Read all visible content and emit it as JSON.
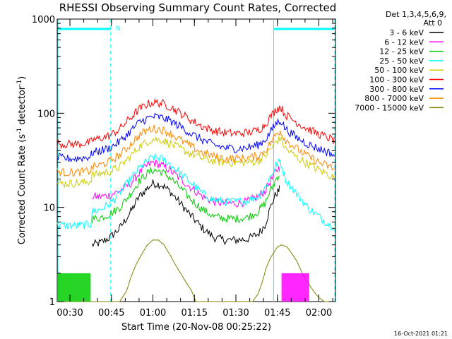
{
  "chart_data": {
    "type": "line",
    "title": "RHESSI Observing Summary Count Rates, Corrected",
    "xlabel": "Start Time (20-Nov-08 00:25:22)",
    "ylabel_prefix": "Corrected Count Rate (s",
    "ylabel_sup1": "-1",
    "ylabel_mid": " detector",
    "ylabel_sup2": "-1",
    "ylabel_suffix": ")",
    "yscale": "log",
    "ylim": [
      1,
      1000
    ],
    "xlim_minutes": [
      25.4,
      126
    ],
    "yticks": [
      {
        "value": 1,
        "label": "1"
      },
      {
        "value": 10,
        "label": "10"
      },
      {
        "value": 100,
        "label": "100"
      },
      {
        "value": 1000,
        "label": "1000"
      }
    ],
    "xticks": [
      {
        "minute": 30,
        "label": "00:30"
      },
      {
        "minute": 45,
        "label": "00:45"
      },
      {
        "minute": 60,
        "label": "01:00"
      },
      {
        "minute": 75,
        "label": "01:15"
      },
      {
        "minute": 90,
        "label": "01:30"
      },
      {
        "minute": 105,
        "label": "01:45"
      },
      {
        "minute": 120,
        "label": "02:00"
      }
    ],
    "legend_header1": "Det 1,3,4,5,6,9,",
    "legend_header2": "Att 0",
    "legend_position": "right",
    "night_intervals_minutes": [
      [
        25.4,
        45.0
      ],
      [
        103.4,
        126
      ]
    ],
    "night_label": "N",
    "saa_style": "dashed cyan vertical lines",
    "series": [
      {
        "name": "3 - 6 keV",
        "color": "#000000",
        "x": [
          25.4,
          37.5,
          38.0,
          41.0,
          44.5,
          48,
          52,
          55,
          58,
          60,
          63,
          66,
          70,
          74,
          78,
          82,
          86,
          90,
          94,
          98,
          100.5,
          102,
          103.5,
          104.5,
          105.5,
          106,
          106.2,
          126
        ],
        "y": [
          null,
          null,
          4.0,
          4.2,
          4.8,
          6,
          9,
          13,
          16,
          18,
          17.5,
          15,
          11,
          8,
          6,
          4.8,
          4.5,
          4.5,
          4.6,
          5.2,
          6.5,
          9,
          12,
          14,
          15,
          16,
          null,
          null
        ]
      },
      {
        "name": "6 - 12 keV",
        "color": "#ff00ff",
        "x": [
          25.4,
          37.5,
          38.0,
          41.0,
          44.5,
          48,
          52,
          55,
          58,
          60,
          63,
          66,
          70,
          74,
          78,
          82,
          86,
          90,
          94,
          98,
          100.5,
          102,
          103.5,
          104.5,
          105.5,
          106,
          106.2,
          126
        ],
        "y": [
          null,
          null,
          13,
          13,
          13.5,
          15,
          18,
          23,
          28,
          30,
          28,
          25,
          20,
          16,
          13,
          11.5,
          11,
          11,
          11.5,
          13,
          15,
          18,
          21,
          24,
          26,
          27,
          null,
          null
        ]
      },
      {
        "name": "12 - 25 keV",
        "color": "#00cc00",
        "x": [
          25.4,
          37.5,
          38.0,
          41.0,
          44.5,
          48,
          52,
          55,
          58,
          60,
          63,
          66,
          70,
          74,
          78,
          82,
          86,
          90,
          94,
          98,
          100.5,
          102,
          103.5,
          104.5,
          105.5,
          106,
          106.2,
          126
        ],
        "y": [
          null,
          null,
          7.5,
          7.8,
          8.5,
          10,
          14,
          19,
          23,
          25,
          24,
          21,
          16,
          12,
          9.5,
          8,
          7.6,
          7.6,
          7.8,
          9,
          11,
          14,
          17,
          20,
          22,
          23,
          null,
          null
        ]
      },
      {
        "name": "25 - 50 keV",
        "color": "#00ffff",
        "x": [
          25.4,
          28,
          32,
          36,
          37.5,
          38.0,
          41.0,
          44.5,
          48,
          52,
          55,
          58,
          60,
          63,
          66,
          70,
          74,
          78,
          82,
          86,
          90,
          94,
          98,
          100.5,
          102,
          103.5,
          104.5,
          105.5,
          106,
          108,
          112,
          116,
          120,
          124,
          126
        ],
        "y": [
          6.5,
          6.4,
          6.4,
          6.5,
          6.6,
          9,
          9.5,
          11,
          14,
          20,
          26,
          31,
          34,
          33,
          29,
          23,
          18,
          14,
          12,
          11.5,
          11.5,
          11.8,
          13,
          16,
          20,
          24,
          28,
          30,
          31,
          20,
          14,
          10,
          8,
          6.5,
          6.2
        ]
      },
      {
        "name": "50 - 100 keV",
        "color": "#cccc00",
        "x": [
          25.4,
          28,
          32,
          36,
          37.5,
          38.0,
          41.0,
          44.5,
          48,
          52,
          55,
          58,
          60,
          63,
          66,
          70,
          74,
          78,
          82,
          86,
          90,
          94,
          98,
          100.5,
          102,
          103.5,
          104.5,
          105.5,
          106,
          108,
          112,
          116,
          120,
          124,
          126
        ],
        "y": [
          18,
          18,
          18,
          18.5,
          19,
          22,
          23,
          24,
          27,
          35,
          44,
          50,
          53,
          52,
          48,
          42,
          37,
          33,
          31,
          30,
          30,
          30,
          31,
          35,
          40,
          45,
          50,
          52,
          54,
          42,
          34,
          29,
          25,
          22,
          20
        ]
      },
      {
        "name": "100 - 300 keV",
        "color": "#ff0000",
        "x": [
          25.4,
          28,
          32,
          36,
          37.5,
          38.0,
          41.0,
          44.5,
          48,
          52,
          55,
          58,
          60,
          63,
          66,
          70,
          74,
          78,
          82,
          86,
          90,
          94,
          98,
          100.5,
          102,
          103.5,
          104.5,
          105.5,
          106,
          108,
          112,
          116,
          120,
          124,
          126
        ],
        "y": [
          48,
          47,
          47,
          48,
          49,
          52,
          54,
          58,
          68,
          90,
          110,
          125,
          130,
          128,
          118,
          100,
          84,
          72,
          65,
          62,
          61,
          62,
          66,
          75,
          88,
          100,
          110,
          115,
          118,
          96,
          80,
          68,
          60,
          54,
          50
        ]
      },
      {
        "name": "300 - 800 keV",
        "color": "#0000ff",
        "x": [
          25.4,
          28,
          32,
          36,
          37.5,
          38.0,
          41.0,
          44.5,
          48,
          52,
          55,
          58,
          60,
          63,
          66,
          70,
          74,
          78,
          82,
          86,
          90,
          94,
          98,
          100.5,
          102,
          103.5,
          104.5,
          105.5,
          106,
          108,
          112,
          116,
          120,
          124,
          126
        ],
        "y": [
          34,
          33,
          33,
          34,
          35,
          38,
          40,
          43,
          50,
          65,
          80,
          88,
          92,
          90,
          84,
          72,
          60,
          52,
          46,
          43,
          42,
          43,
          46,
          52,
          60,
          70,
          78,
          82,
          85,
          68,
          55,
          47,
          42,
          38,
          35
        ]
      },
      {
        "name": "800 - 7000 keV",
        "color": "#ff8800",
        "x": [
          25.4,
          28,
          32,
          36,
          37.5,
          38.0,
          41.0,
          44.5,
          48,
          52,
          55,
          58,
          60,
          63,
          66,
          70,
          74,
          78,
          82,
          86,
          90,
          94,
          98,
          100.5,
          102,
          103.5,
          104.5,
          105.5,
          106,
          108,
          112,
          116,
          120,
          124,
          126
        ],
        "y": [
          24,
          23.5,
          23.5,
          24,
          24.5,
          27,
          28,
          31,
          36,
          47,
          58,
          66,
          69,
          67,
          62,
          52,
          44,
          38,
          35,
          33,
          33,
          33.5,
          35,
          40,
          46,
          53,
          60,
          63,
          65,
          52,
          42,
          35,
          30,
          27,
          25
        ]
      },
      {
        "name": "7000 - 15000 keV",
        "color": "#808000",
        "x": [
          25.4,
          37,
          45,
          48,
          50.5,
          52,
          54,
          56,
          58,
          60,
          62,
          64,
          66,
          68,
          70,
          72,
          74,
          75.5,
          78,
          85,
          96,
          98,
          99.5,
          101,
          102.5,
          104,
          105,
          106.5,
          108.5,
          110,
          112,
          114,
          116,
          118,
          120,
          122,
          124,
          126
        ],
        "y": [
          1,
          1,
          1,
          1,
          1.3,
          1.8,
          2.5,
          3.2,
          4,
          4.5,
          4.5,
          4,
          3.2,
          2.5,
          2,
          1.6,
          1.3,
          1,
          1,
          1,
          1,
          1.2,
          1.6,
          2.3,
          2.9,
          3.4,
          3.8,
          4,
          3.8,
          3.3,
          2.7,
          2,
          1.6,
          1.3,
          1.1,
          1,
          1,
          1
        ]
      }
    ],
    "saa_attenuator_blocks": [
      {
        "color": "#00cc00",
        "x_start": 25.4,
        "x_end": 37.5,
        "level": 2
      },
      {
        "color": "#ff00ff",
        "x_start": 106.5,
        "x_end": 116.5,
        "level": 2
      }
    ]
  },
  "timestamp": "16-Oct-2021 01:21"
}
